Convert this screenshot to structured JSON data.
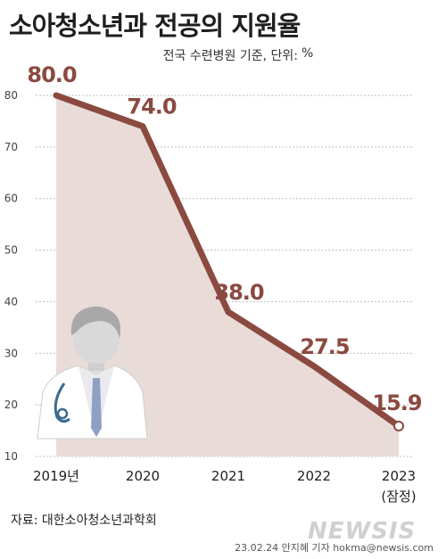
{
  "header": {
    "title": "소아청소년과 전공의 지원율",
    "subtitle": "전국 수련병원 기준, 단위:",
    "unit_symbol": "%"
  },
  "footer": {
    "source": "자료: 대한소아청소년과학회",
    "credit": "23.02.24 안지혜 기자 hokma@newsis.com",
    "watermark": "NEWSIS"
  },
  "colors": {
    "line": "#8b4a40",
    "area": "#e9dcd8",
    "data_label": "#8b4a40",
    "grid": "#bdbdbd"
  },
  "chart_data": {
    "type": "line",
    "categories": [
      "2019년",
      "2020",
      "2021",
      "2022",
      "2023"
    ],
    "category_notes": [
      "",
      "",
      "",
      "",
      "(잠정)"
    ],
    "series": [
      {
        "values": [
          80.0,
          74.0,
          38.0,
          27.5,
          15.9
        ]
      }
    ],
    "data_labels": [
      "80.0",
      "74.0",
      "38.0",
      "27.5",
      "15.9"
    ],
    "yticks": [
      10,
      20,
      30,
      40,
      50,
      60,
      70,
      80
    ],
    "ylim": [
      10,
      80
    ],
    "grid": true,
    "last_point_marker": "hollow-circle",
    "illustration_icon": "doctor-stethoscope-icon"
  }
}
